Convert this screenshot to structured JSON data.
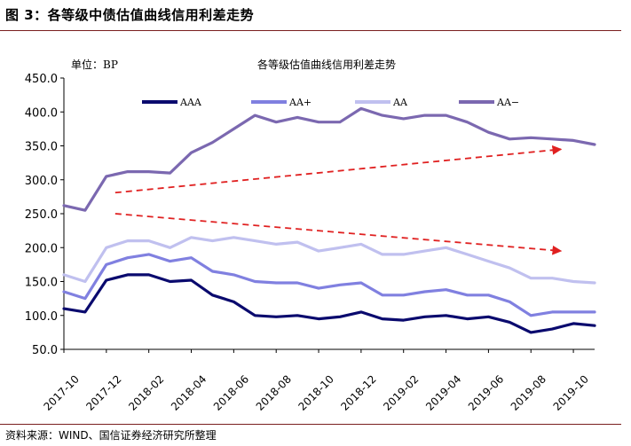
{
  "figure": {
    "title": "图 3：各等级中债估值曲线信用利差走势",
    "source": "资料来源：WIND、国信证券经济研究所整理"
  },
  "chart_data": {
    "type": "line",
    "title": "各等级估值曲线信用利差走势",
    "unit_label": "单位：BP",
    "ylim": [
      50,
      450
    ],
    "y_ticks": [
      "450.0",
      "400.0",
      "350.0",
      "300.0",
      "250.0",
      "200.0",
      "150.0",
      "100.0",
      "50.0"
    ],
    "x_ticks": [
      "2017-10",
      "2017-12",
      "2018-02",
      "2018-04",
      "2018-06",
      "2018-08",
      "2018-10",
      "2018-12",
      "2019-02",
      "2019-04",
      "2019-06",
      "2019-08",
      "2019-10"
    ],
    "x_range": [
      "2017-10",
      "2019-11"
    ],
    "grid": false,
    "legend_position": "top",
    "x": [
      "2017-10",
      "2017-11",
      "2017-12",
      "2018-01",
      "2018-02",
      "2018-03",
      "2018-04",
      "2018-05",
      "2018-06",
      "2018-07",
      "2018-08",
      "2018-09",
      "2018-10",
      "2018-11",
      "2018-12",
      "2019-01",
      "2019-02",
      "2019-03",
      "2019-04",
      "2019-05",
      "2019-06",
      "2019-07",
      "2019-08",
      "2019-09",
      "2019-10",
      "2019-11"
    ],
    "series": [
      {
        "name": "AAA",
        "color": "#0a0a6e",
        "width": 3.2,
        "values": [
          110,
          105,
          152,
          160,
          160,
          150,
          152,
          130,
          120,
          100,
          98,
          100,
          95,
          98,
          105,
          95,
          93,
          98,
          100,
          95,
          98,
          90,
          75,
          80,
          88,
          85
        ]
      },
      {
        "name": "AA+",
        "color": "#8080e0",
        "width": 3.2,
        "values": [
          135,
          125,
          175,
          185,
          190,
          180,
          185,
          165,
          160,
          150,
          148,
          148,
          140,
          145,
          148,
          130,
          130,
          135,
          138,
          130,
          130,
          120,
          100,
          105,
          105,
          105
        ]
      },
      {
        "name": "AA",
        "color": "#c0c0ef",
        "width": 3.2,
        "values": [
          160,
          150,
          200,
          210,
          210,
          200,
          215,
          210,
          215,
          210,
          205,
          208,
          195,
          200,
          205,
          190,
          190,
          195,
          200,
          190,
          180,
          170,
          155,
          155,
          150,
          148
        ]
      },
      {
        "name": "AA−",
        "color": "#7b68b0",
        "width": 3.2,
        "values": [
          262,
          255,
          305,
          312,
          312,
          310,
          340,
          355,
          375,
          395,
          385,
          392,
          385,
          385,
          405,
          395,
          390,
          395,
          395,
          385,
          370,
          360,
          362,
          360,
          358,
          352
        ]
      }
    ],
    "trend_arrows": [
      {
        "color": "#e02020",
        "from": [
          "2017-12",
          281
        ],
        "to": [
          "2019-09",
          345
        ]
      },
      {
        "color": "#e02020",
        "from": [
          "2017-12",
          250
        ],
        "to": [
          "2019-09",
          195
        ]
      }
    ]
  }
}
